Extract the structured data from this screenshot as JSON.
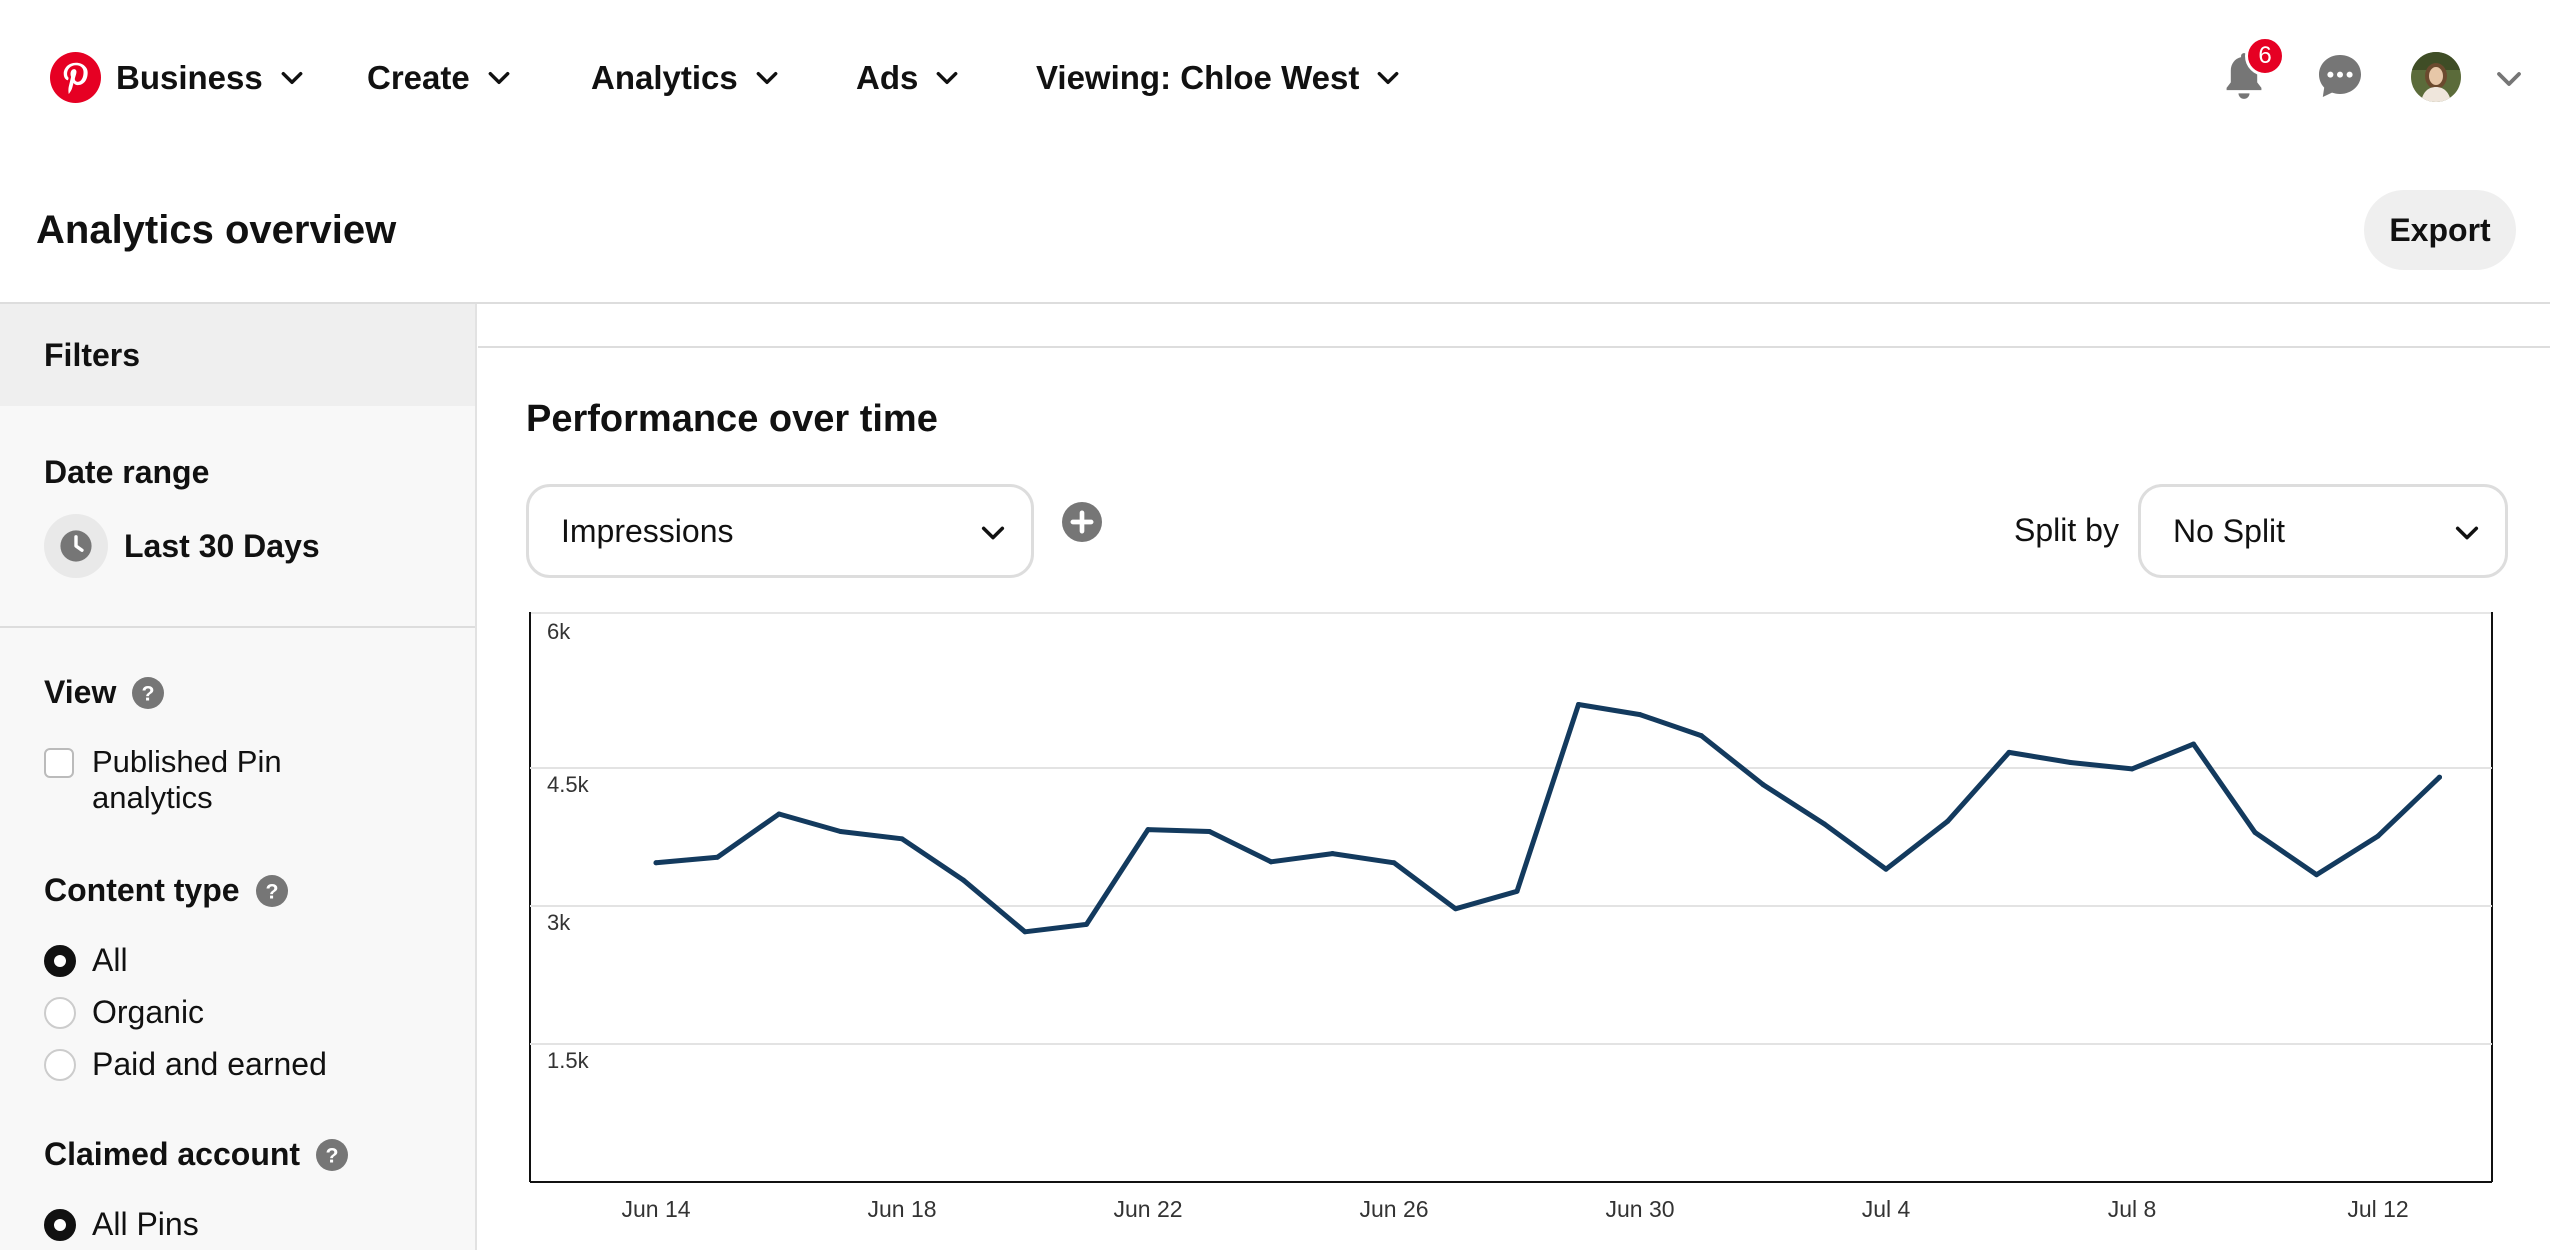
{
  "nav": {
    "business": "Business",
    "create": "Create",
    "analytics": "Analytics",
    "ads": "Ads",
    "viewing": "Viewing: Chloe West",
    "notifications_count": "6",
    "brand_color": "#e60023"
  },
  "header": {
    "title": "Analytics overview",
    "export_label": "Export"
  },
  "sidebar": {
    "filters_title": "Filters",
    "date_range_label": "Date range",
    "date_range_value": "Last 30 Days",
    "view_label": "View",
    "view_option": "Published Pin analytics",
    "content_type_label": "Content type",
    "content_type_options": [
      "All",
      "Organic",
      "Paid and earned"
    ],
    "content_type_selected": "All",
    "claimed_account_label": "Claimed account",
    "claimed_account_options": [
      "All Pins"
    ],
    "claimed_account_selected": "All Pins"
  },
  "main": {
    "section_title": "Performance over time",
    "metric_select_value": "Impressions",
    "split_by_label": "Split by",
    "split_select_value": "No Split"
  },
  "chart_data": {
    "type": "line",
    "title": "",
    "xlabel": "",
    "ylabel": "",
    "ylim": [
      0,
      6000
    ],
    "y_ticks": [
      "6k",
      "4.5k",
      "3k",
      "1.5k"
    ],
    "y_tick_values": [
      6000,
      4500,
      3000,
      1500
    ],
    "x_tick_labels": [
      "Jun 14",
      "Jun 18",
      "Jun 22",
      "Jun 26",
      "Jun 30",
      "Jul 4",
      "Jul 8",
      "Jul 12"
    ],
    "x": [
      "Jun 14",
      "Jun 15",
      "Jun 16",
      "Jun 17",
      "Jun 18",
      "Jun 19",
      "Jun 20",
      "Jun 21",
      "Jun 22",
      "Jun 23",
      "Jun 24",
      "Jun 25",
      "Jun 26",
      "Jun 27",
      "Jun 28",
      "Jun 29",
      "Jun 30",
      "Jul 1",
      "Jul 2",
      "Jul 3",
      "Jul 4",
      "Jul 5",
      "Jul 6",
      "Jul 7",
      "Jul 8",
      "Jul 9",
      "Jul 10",
      "Jul 11",
      "Jul 12",
      "Jul 13"
    ],
    "series": [
      {
        "name": "",
        "color": "#133a5e",
        "values": [
          3470,
          3530,
          4000,
          3810,
          3730,
          3280,
          2720,
          2800,
          3830,
          3810,
          3480,
          3570,
          3470,
          2970,
          3160,
          5190,
          5080,
          4850,
          4320,
          3890,
          3400,
          3920,
          4670,
          4560,
          4490,
          4760,
          3800,
          3340,
          3760,
          4400
        ]
      }
    ],
    "grid": true,
    "legend": "none"
  }
}
